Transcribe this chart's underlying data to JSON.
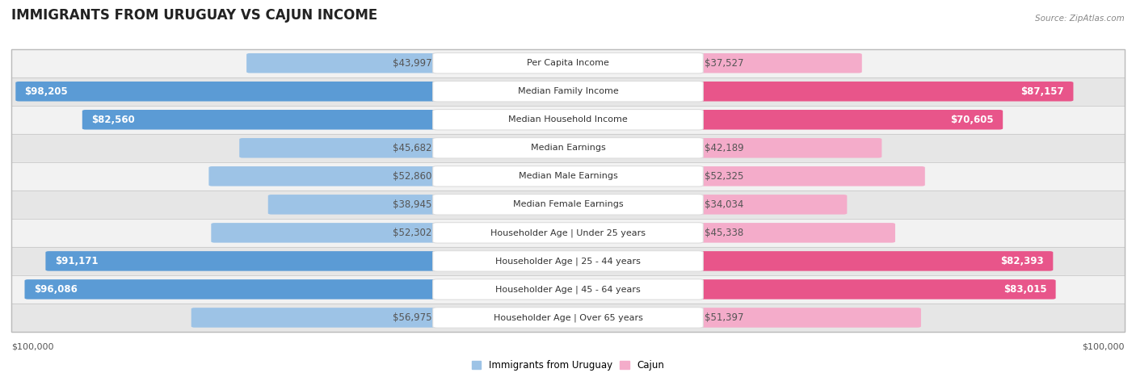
{
  "title": "IMMIGRANTS FROM URUGUAY VS CAJUN INCOME",
  "source": "Source: ZipAtlas.com",
  "categories": [
    "Per Capita Income",
    "Median Family Income",
    "Median Household Income",
    "Median Earnings",
    "Median Male Earnings",
    "Median Female Earnings",
    "Householder Age | Under 25 years",
    "Householder Age | 25 - 44 years",
    "Householder Age | 45 - 64 years",
    "Householder Age | Over 65 years"
  ],
  "uruguay_values": [
    43997,
    98205,
    82560,
    45682,
    52860,
    38945,
    52302,
    91171,
    96086,
    56975
  ],
  "cajun_values": [
    37527,
    87157,
    70605,
    42189,
    52325,
    34034,
    45338,
    82393,
    83015,
    51397
  ],
  "uruguay_labels": [
    "$43,997",
    "$98,205",
    "$82,560",
    "$45,682",
    "$52,860",
    "$38,945",
    "$52,302",
    "$91,171",
    "$96,086",
    "$56,975"
  ],
  "cajun_labels": [
    "$37,527",
    "$87,157",
    "$70,605",
    "$42,189",
    "$52,325",
    "$34,034",
    "$45,338",
    "$82,393",
    "$83,015",
    "$51,397"
  ],
  "max_value": 100000,
  "uruguay_color_full": "#5b9bd5",
  "uruguay_color_light": "#9dc3e6",
  "cajun_color_full": "#e8558a",
  "cajun_color_light": "#f4acca",
  "row_bg_odd": "#f2f2f2",
  "row_bg_even": "#e6e6e6",
  "label_fontsize": 8.5,
  "title_fontsize": 12,
  "legend_fontsize": 8.5,
  "axis_fontsize": 8,
  "category_fontsize": 8
}
